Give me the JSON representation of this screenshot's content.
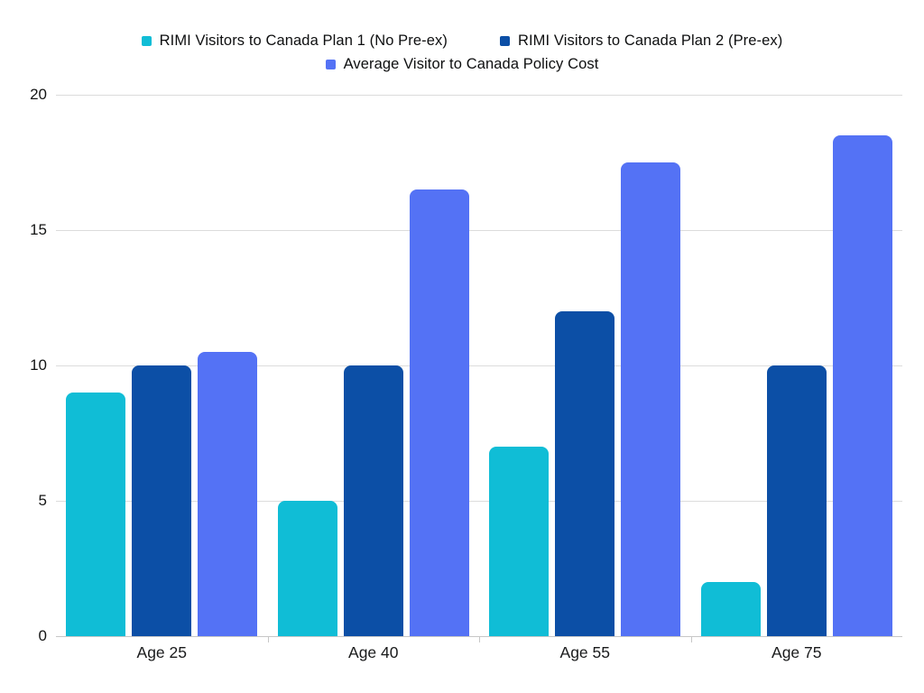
{
  "chart_data": {
    "type": "bar",
    "title": "",
    "xlabel": "",
    "ylabel": "",
    "categories": [
      "Age 25",
      "Age 40",
      "Age 55",
      "Age 75"
    ],
    "series": [
      {
        "name": "RIMI Visitors to Canada Plan 1 (No Pre-ex)",
        "color": "#10bdd6",
        "values": [
          9,
          5,
          7,
          2
        ]
      },
      {
        "name": "RIMI Visitors to Canada Plan 2 (Pre-ex)",
        "color": "#0c4fa6",
        "values": [
          10,
          10,
          12,
          10
        ]
      },
      {
        "name": "Average Visitor to Canada Policy Cost",
        "color": "#5472f5",
        "values": [
          10.5,
          16.5,
          17.5,
          18.5
        ]
      }
    ],
    "y_ticks": [
      0,
      5,
      10,
      15,
      20
    ],
    "ylim": [
      0,
      20
    ],
    "grid": true,
    "legend_position": "top",
    "colors": {
      "background": "#ffffff",
      "gridline": "#dcdcdc",
      "baseline": "#c7c7c7",
      "text": "#141515"
    }
  }
}
